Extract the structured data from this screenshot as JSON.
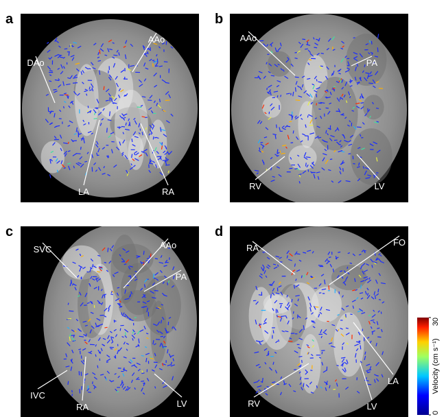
{
  "panels": [
    {
      "letter": "a",
      "labels": [
        "DAo",
        "AAo",
        "LA",
        "RA"
      ]
    },
    {
      "letter": "b",
      "labels": [
        "AAo",
        "PA",
        "RV",
        "LV"
      ]
    },
    {
      "letter": "c",
      "labels": [
        "SVC",
        "AAo",
        "PA",
        "IVC",
        "RA",
        "LV"
      ]
    },
    {
      "letter": "d",
      "labels": [
        "RA",
        "FO",
        "LA",
        "RV",
        "LV"
      ]
    }
  ],
  "colorbar": {
    "label": "Velocity (cm s⁻¹)",
    "lim": [
      0,
      30
    ],
    "ticks": [
      0,
      30
    ]
  }
}
